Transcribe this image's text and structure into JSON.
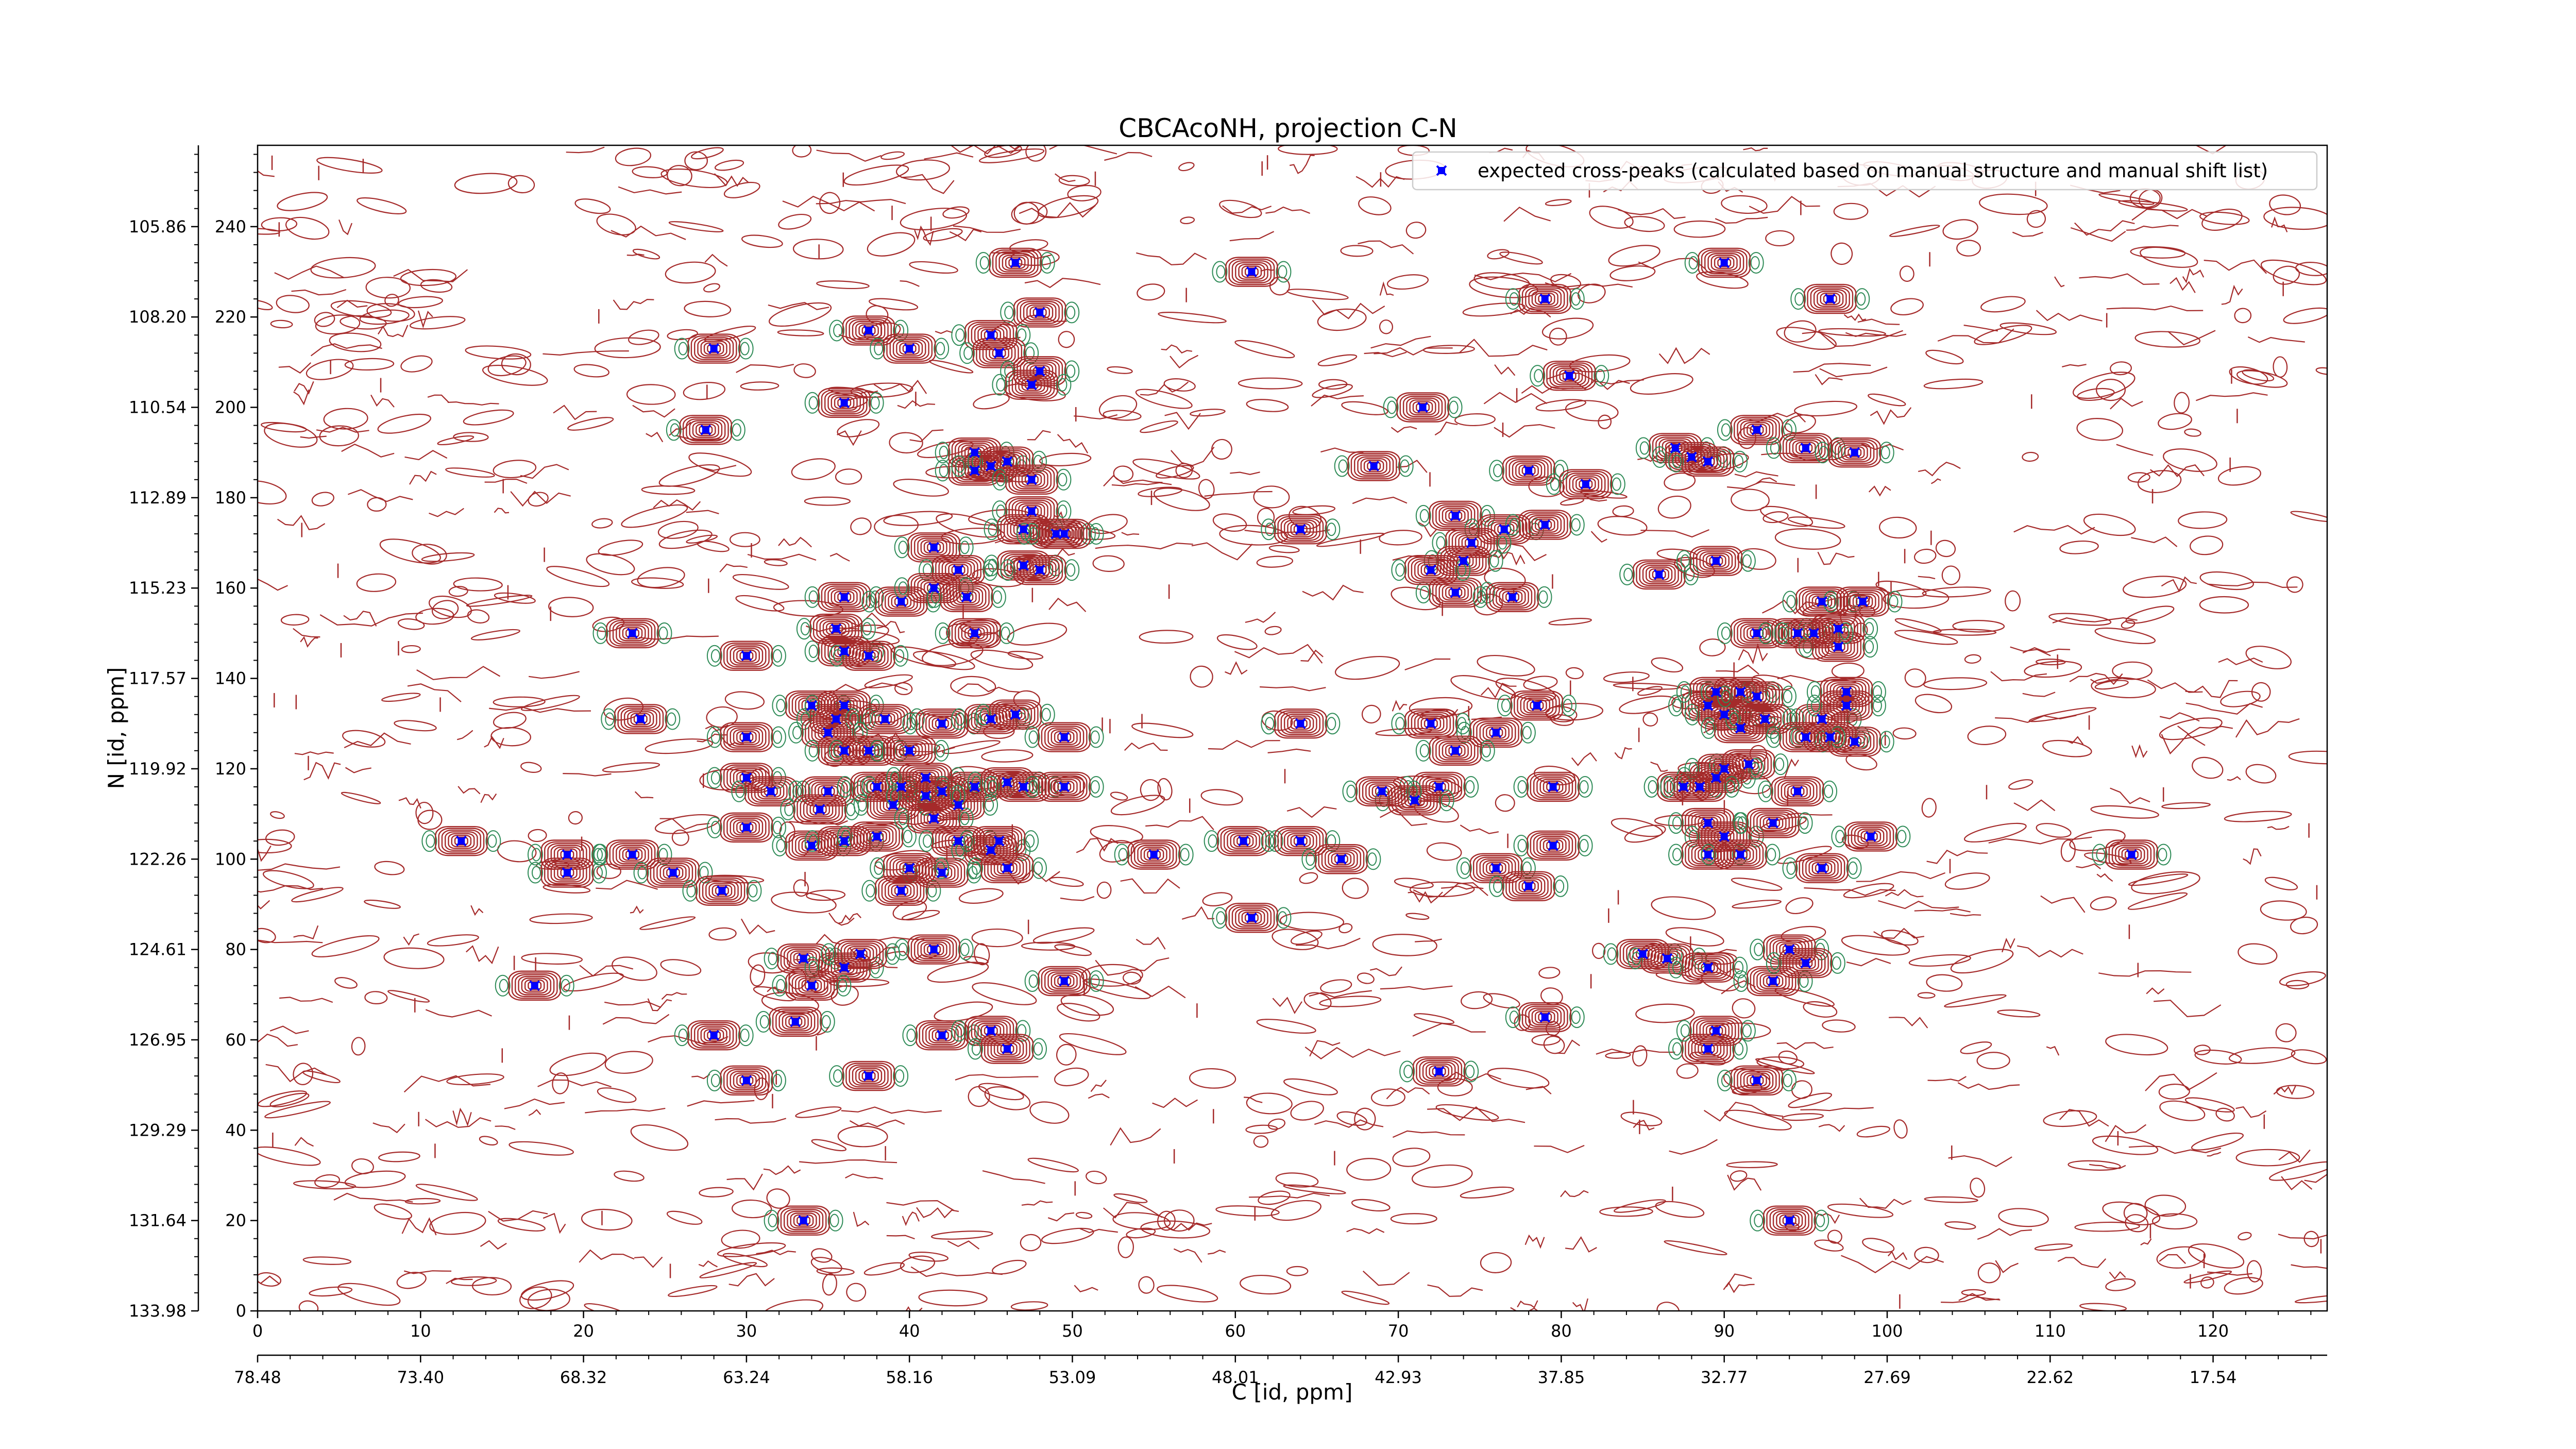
{
  "chart_data": {
    "type": "scatter",
    "title": "CBCAcoNH, projection C-N",
    "xlabel": "C [id, ppm]",
    "ylabel": "N [id, ppm]",
    "x_range_id": [
      0,
      127
    ],
    "y_range_id": [
      0,
      258
    ],
    "x_ticks_id": [
      0,
      10,
      20,
      30,
      40,
      50,
      60,
      70,
      80,
      90,
      100,
      110,
      120
    ],
    "y_ticks_id": [
      0,
      20,
      40,
      60,
      80,
      100,
      120,
      140,
      160,
      180,
      200,
      220,
      240
    ],
    "x_ticks_ppm": [
      "78.48",
      "73.40",
      "68.32",
      "63.24",
      "58.16",
      "53.09",
      "48.01",
      "42.93",
      "37.85",
      "32.77",
      "27.69",
      "22.62",
      "17.54"
    ],
    "y_ticks_ppm": [
      "133.98",
      "131.64",
      "129.29",
      "126.95",
      "124.61",
      "122.26",
      "119.92",
      "117.57",
      "115.23",
      "112.89",
      "110.54",
      "108.20",
      "105.86"
    ],
    "grid": false,
    "legend_position": "top-right",
    "contour_colors": {
      "positive": "#a52a2a",
      "negative": "#2e8b57"
    },
    "series": [
      {
        "name": "expected cross-peaks (calculated based on manual structure and manual shift list)",
        "color": "#0000ff",
        "marker": "x",
        "points": [
          [
            46.5,
            232
          ],
          [
            61,
            230
          ],
          [
            90,
            232
          ],
          [
            48,
            221
          ],
          [
            37.5,
            217
          ],
          [
            45,
            216
          ],
          [
            40,
            213
          ],
          [
            28,
            213
          ],
          [
            45.5,
            212
          ],
          [
            48,
            208
          ],
          [
            47.5,
            205
          ],
          [
            36,
            201
          ],
          [
            71.5,
            200
          ],
          [
            80.5,
            207
          ],
          [
            27.5,
            195
          ],
          [
            44,
            190
          ],
          [
            44,
            186
          ],
          [
            45,
            187
          ],
          [
            46,
            188
          ],
          [
            68.5,
            187
          ],
          [
            78,
            186
          ],
          [
            87,
            191
          ],
          [
            88,
            189
          ],
          [
            92,
            195
          ],
          [
            89,
            188
          ],
          [
            95,
            191
          ],
          [
            98,
            190
          ],
          [
            47.5,
            184
          ],
          [
            47.5,
            177
          ],
          [
            47,
            173
          ],
          [
            49,
            172
          ],
          [
            49.5,
            172
          ],
          [
            64,
            173
          ],
          [
            73.5,
            176
          ],
          [
            76.5,
            173
          ],
          [
            79,
            174
          ],
          [
            74.5,
            170
          ],
          [
            74,
            166
          ],
          [
            41.5,
            169
          ],
          [
            43,
            164
          ],
          [
            47,
            165
          ],
          [
            48,
            164
          ],
          [
            36,
            158
          ],
          [
            39.5,
            157
          ],
          [
            41.5,
            160
          ],
          [
            43.5,
            158
          ],
          [
            73.5,
            159
          ],
          [
            72,
            164
          ],
          [
            77,
            158
          ],
          [
            86,
            163
          ],
          [
            89.5,
            166
          ],
          [
            23,
            150
          ],
          [
            30,
            145
          ],
          [
            36,
            146
          ],
          [
            35.5,
            151
          ],
          [
            37.5,
            145
          ],
          [
            44,
            150
          ],
          [
            92,
            150
          ],
          [
            94.5,
            150
          ],
          [
            97,
            151
          ],
          [
            96,
            157
          ],
          [
            98.5,
            157
          ],
          [
            97,
            147
          ],
          [
            34,
            134
          ],
          [
            36,
            134
          ],
          [
            35.5,
            131
          ],
          [
            38.5,
            131
          ],
          [
            42,
            130
          ],
          [
            45,
            131
          ],
          [
            46.5,
            132
          ],
          [
            23.5,
            131
          ],
          [
            30,
            127
          ],
          [
            35,
            128
          ],
          [
            36,
            124
          ],
          [
            37.5,
            124
          ],
          [
            40,
            124
          ],
          [
            49.5,
            127
          ],
          [
            64,
            130
          ],
          [
            72,
            130
          ],
          [
            76,
            128
          ],
          [
            78.5,
            134
          ],
          [
            89,
            134
          ],
          [
            90,
            132
          ],
          [
            91,
            129
          ],
          [
            92.5,
            131
          ],
          [
            96,
            131
          ],
          [
            96.5,
            127
          ],
          [
            97.5,
            134
          ],
          [
            98,
            126
          ],
          [
            30,
            118
          ],
          [
            31.5,
            115
          ],
          [
            35,
            115
          ],
          [
            38,
            116
          ],
          [
            39.5,
            116
          ],
          [
            41,
            118
          ],
          [
            42,
            115
          ],
          [
            44,
            116
          ],
          [
            46,
            117
          ],
          [
            47,
            116
          ],
          [
            49.5,
            116
          ],
          [
            34.5,
            111
          ],
          [
            39,
            112
          ],
          [
            43,
            112
          ],
          [
            41,
            114
          ],
          [
            72.5,
            116
          ],
          [
            71,
            113
          ],
          [
            73.5,
            124
          ],
          [
            69,
            115
          ],
          [
            79.5,
            116
          ],
          [
            87.5,
            116
          ],
          [
            89.5,
            118
          ],
          [
            91.5,
            121
          ],
          [
            94.5,
            115
          ],
          [
            30,
            107
          ],
          [
            34,
            103
          ],
          [
            36,
            104
          ],
          [
            38,
            105
          ],
          [
            41.5,
            109
          ],
          [
            43,
            104
          ],
          [
            45,
            102
          ],
          [
            45.5,
            104
          ],
          [
            12.5,
            104
          ],
          [
            19,
            101
          ],
          [
            19,
            97
          ],
          [
            23,
            101
          ],
          [
            25.5,
            97
          ],
          [
            28.5,
            93
          ],
          [
            39.5,
            93
          ],
          [
            42,
            97
          ],
          [
            40,
            98
          ],
          [
            46,
            98
          ],
          [
            55,
            101
          ],
          [
            60.5,
            104
          ],
          [
            64,
            104
          ],
          [
            66.5,
            100
          ],
          [
            79.5,
            103
          ],
          [
            76,
            98
          ],
          [
            78,
            94
          ],
          [
            89,
            108
          ],
          [
            90,
            105
          ],
          [
            89,
            101
          ],
          [
            91,
            101
          ],
          [
            96,
            98
          ],
          [
            99,
            105
          ],
          [
            115,
            101
          ],
          [
            61,
            87
          ],
          [
            33.5,
            78
          ],
          [
            36,
            76
          ],
          [
            37,
            79
          ],
          [
            41.5,
            80
          ],
          [
            34,
            72
          ],
          [
            49.5,
            73
          ],
          [
            17,
            72
          ],
          [
            33,
            64
          ],
          [
            28,
            61
          ],
          [
            42,
            61
          ],
          [
            45,
            62
          ],
          [
            46,
            58
          ],
          [
            79,
            65
          ],
          [
            85,
            79
          ],
          [
            86.5,
            78
          ],
          [
            89,
            76
          ],
          [
            89,
            58
          ],
          [
            89.5,
            62
          ],
          [
            92,
            51
          ],
          [
            93,
            73
          ],
          [
            94,
            80
          ],
          [
            95,
            77
          ],
          [
            30,
            51
          ],
          [
            37.5,
            52
          ],
          [
            72.5,
            53
          ],
          [
            33.5,
            20
          ],
          [
            94,
            20
          ],
          [
            79,
            224
          ],
          [
            81.5,
            183
          ],
          [
            96.5,
            224
          ],
          [
            95.5,
            150
          ],
          [
            90,
            120
          ],
          [
            93,
            108
          ],
          [
            88.5,
            116
          ],
          [
            95,
            127
          ],
          [
            97.5,
            137
          ],
          [
            91,
            137
          ],
          [
            89.5,
            137
          ],
          [
            92,
            136
          ]
        ]
      }
    ]
  }
}
